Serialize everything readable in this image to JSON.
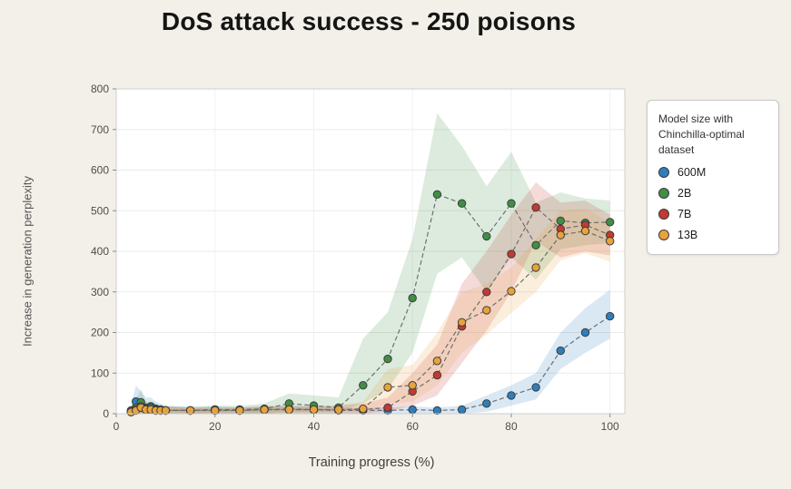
{
  "page": {
    "background": "#f2f0e8"
  },
  "chart_data": {
    "type": "line",
    "title": "DoS attack success - 250 poisons",
    "xlabel": "Training progress (%)",
    "ylabel": "Increase in generation perplexity",
    "xlim": [
      0,
      103
    ],
    "ylim": [
      0,
      800
    ],
    "xticks": [
      0,
      20,
      40,
      60,
      80,
      100
    ],
    "yticks": [
      0,
      100,
      200,
      300,
      400,
      500,
      600,
      700,
      800
    ],
    "grid": true,
    "legend_position": "right",
    "legend_title": "Model size with Chinchilla-optimal dataset",
    "line_style": "dashed-gray",
    "x": [
      3,
      4,
      5,
      6,
      7,
      8,
      9,
      10,
      15,
      20,
      25,
      30,
      35,
      40,
      45,
      50,
      55,
      60,
      65,
      70,
      75,
      80,
      85,
      90,
      95,
      100
    ],
    "series": [
      {
        "name": "600M",
        "color": "#2e7ebc",
        "values": [
          8,
          30,
          22,
          15,
          18,
          12,
          10,
          8,
          8,
          10,
          8,
          10,
          12,
          10,
          8,
          8,
          8,
          10,
          8,
          10,
          25,
          45,
          65,
          155,
          200,
          240
        ],
        "band_lower": [
          0,
          0,
          0,
          0,
          0,
          0,
          0,
          0,
          0,
          0,
          0,
          0,
          0,
          0,
          0,
          0,
          0,
          0,
          0,
          0,
          5,
          20,
          35,
          110,
          150,
          185
        ],
        "band_upper": [
          20,
          70,
          55,
          40,
          40,
          30,
          25,
          20,
          15,
          18,
          15,
          18,
          20,
          18,
          15,
          15,
          15,
          18,
          15,
          20,
          45,
          70,
          100,
          200,
          260,
          305
        ]
      },
      {
        "name": "2B",
        "color": "#3f8f44",
        "values": [
          5,
          15,
          28,
          12,
          15,
          10,
          8,
          8,
          8,
          10,
          10,
          12,
          25,
          20,
          15,
          70,
          135,
          285,
          540,
          518,
          437,
          518,
          415,
          475,
          470,
          472
        ],
        "band_lower": [
          0,
          0,
          0,
          0,
          0,
          0,
          0,
          0,
          0,
          0,
          0,
          0,
          5,
          5,
          5,
          25,
          60,
          150,
          345,
          385,
          300,
          385,
          330,
          405,
          415,
          420
        ],
        "band_upper": [
          15,
          35,
          60,
          30,
          30,
          25,
          20,
          18,
          18,
          20,
          20,
          25,
          50,
          45,
          40,
          185,
          250,
          430,
          740,
          660,
          560,
          645,
          520,
          545,
          530,
          525
        ]
      },
      {
        "name": "7B",
        "color": "#c23a32",
        "values": [
          4,
          10,
          18,
          10,
          10,
          8,
          8,
          8,
          8,
          8,
          8,
          10,
          10,
          10,
          10,
          10,
          15,
          55,
          95,
          215,
          300,
          393,
          508,
          455,
          465,
          440
        ],
        "band_lower": [
          0,
          0,
          0,
          0,
          0,
          0,
          0,
          0,
          0,
          0,
          0,
          0,
          0,
          0,
          0,
          0,
          5,
          20,
          45,
          125,
          205,
          300,
          425,
          385,
          400,
          390
        ],
        "band_upper": [
          12,
          25,
          40,
          22,
          22,
          18,
          18,
          18,
          15,
          15,
          15,
          18,
          18,
          18,
          20,
          25,
          40,
          100,
          170,
          320,
          400,
          490,
          570,
          520,
          525,
          490
        ]
      },
      {
        "name": "13B",
        "color": "#e8a33b",
        "values": [
          4,
          8,
          15,
          10,
          10,
          8,
          8,
          8,
          8,
          8,
          8,
          10,
          10,
          10,
          10,
          12,
          65,
          70,
          130,
          225,
          255,
          302,
          360,
          440,
          450,
          425
        ],
        "band_lower": [
          0,
          0,
          0,
          0,
          0,
          0,
          0,
          0,
          0,
          0,
          0,
          0,
          0,
          0,
          0,
          0,
          25,
          30,
          70,
          150,
          195,
          248,
          300,
          378,
          395,
          375
        ],
        "band_upper": [
          12,
          20,
          30,
          20,
          20,
          18,
          18,
          15,
          15,
          15,
          15,
          18,
          18,
          18,
          20,
          30,
          110,
          120,
          200,
          300,
          320,
          360,
          430,
          500,
          505,
          470
        ]
      }
    ]
  }
}
